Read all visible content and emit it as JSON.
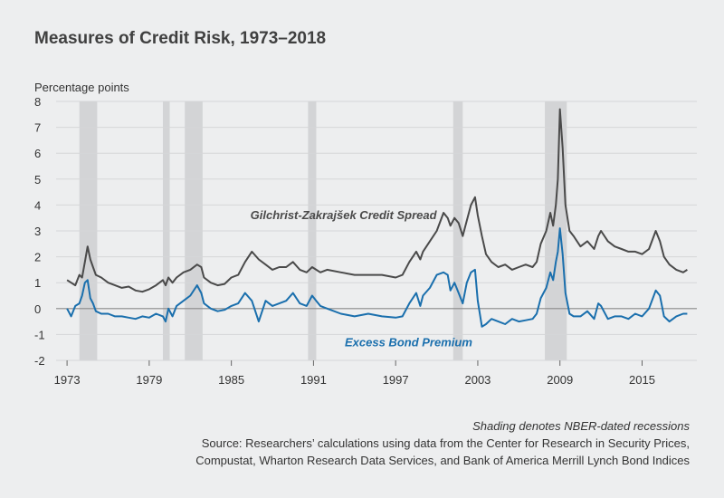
{
  "chart_data": {
    "type": "line",
    "title": "Measures of Credit Risk, 1973–2018",
    "ylabel": "Percentage points",
    "xlabel": "",
    "ylim": [
      -2,
      8
    ],
    "xlim": [
      1972.2,
      2019
    ],
    "yticks": [
      "8",
      "7",
      "6",
      "5",
      "4",
      "3",
      "2",
      "1",
      "0",
      "-1",
      "-2"
    ],
    "yticks_values": [
      8,
      7,
      6,
      5,
      4,
      3,
      2,
      1,
      0,
      -1,
      -2
    ],
    "xticks": [
      "1973",
      "1979",
      "1985",
      "1991",
      "1997",
      "2003",
      "2009",
      "2015"
    ],
    "xticks_values": [
      1973,
      1979,
      1985,
      1991,
      1997,
      2003,
      2009,
      2015
    ],
    "grid": "horizontal",
    "recessions": [
      [
        1973.9,
        1975.2
      ],
      [
        1980.0,
        1980.5
      ],
      [
        1981.6,
        1982.9
      ],
      [
        1990.6,
        1991.2
      ],
      [
        2001.2,
        2001.9
      ],
      [
        2007.9,
        2009.5
      ]
    ],
    "series": [
      {
        "name": "Gilchrist-Zakrajšek Credit Spread",
        "color": "#4a4a4a",
        "x": [
          1973.0,
          1973.3,
          1973.6,
          1973.9,
          1974.1,
          1974.3,
          1974.5,
          1974.7,
          1974.9,
          1975.1,
          1975.5,
          1976.0,
          1976.5,
          1977.0,
          1977.5,
          1978.0,
          1978.5,
          1979.0,
          1979.5,
          1980.0,
          1980.2,
          1980.4,
          1980.7,
          1981.0,
          1981.5,
          1982.0,
          1982.5,
          1982.8,
          1983.0,
          1983.5,
          1984.0,
          1984.5,
          1985.0,
          1985.5,
          1986.0,
          1986.5,
          1987.0,
          1987.5,
          1988.0,
          1988.5,
          1989.0,
          1989.5,
          1990.0,
          1990.5,
          1990.9,
          1991.2,
          1991.5,
          1992.0,
          1993.0,
          1994.0,
          1995.0,
          1996.0,
          1997.0,
          1997.5,
          1998.0,
          1998.5,
          1998.8,
          1999.0,
          1999.5,
          2000.0,
          2000.5,
          2000.8,
          2001.0,
          2001.3,
          2001.6,
          2001.9,
          2002.2,
          2002.5,
          2002.8,
          2003.0,
          2003.3,
          2003.6,
          2004.0,
          2004.5,
          2005.0,
          2005.5,
          2006.0,
          2006.5,
          2007.0,
          2007.3,
          2007.6,
          2008.0,
          2008.3,
          2008.5,
          2008.7,
          2008.85,
          2009.0,
          2009.2,
          2009.4,
          2009.7,
          2010.0,
          2010.5,
          2011.0,
          2011.5,
          2011.8,
          2012.0,
          2012.5,
          2013.0,
          2013.5,
          2014.0,
          2014.5,
          2015.0,
          2015.5,
          2016.0,
          2016.3,
          2016.6,
          2017.0,
          2017.5,
          2018.0,
          2018.3
        ],
        "values": [
          1.1,
          1.0,
          0.9,
          1.3,
          1.2,
          1.8,
          2.4,
          1.9,
          1.6,
          1.3,
          1.2,
          1.0,
          0.9,
          0.8,
          0.85,
          0.7,
          0.65,
          0.75,
          0.9,
          1.1,
          0.9,
          1.2,
          1.0,
          1.2,
          1.4,
          1.5,
          1.7,
          1.6,
          1.2,
          1.0,
          0.9,
          0.95,
          1.2,
          1.3,
          1.8,
          2.2,
          1.9,
          1.7,
          1.5,
          1.6,
          1.6,
          1.8,
          1.5,
          1.4,
          1.6,
          1.5,
          1.4,
          1.5,
          1.4,
          1.3,
          1.3,
          1.3,
          1.2,
          1.3,
          1.8,
          2.2,
          1.9,
          2.2,
          2.6,
          3.0,
          3.7,
          3.5,
          3.2,
          3.5,
          3.3,
          2.8,
          3.4,
          4.0,
          4.3,
          3.6,
          2.8,
          2.1,
          1.8,
          1.6,
          1.7,
          1.5,
          1.6,
          1.7,
          1.6,
          1.8,
          2.5,
          3.0,
          3.7,
          3.2,
          4.0,
          5.0,
          7.7,
          6.2,
          4.0,
          3.0,
          2.8,
          2.4,
          2.6,
          2.3,
          2.8,
          3.0,
          2.6,
          2.4,
          2.3,
          2.2,
          2.2,
          2.1,
          2.3,
          3.0,
          2.6,
          2.0,
          1.7,
          1.5,
          1.4,
          1.5
        ]
      },
      {
        "name": "Excess Bond Premium",
        "color": "#1a6fad",
        "x": [
          1973.0,
          1973.3,
          1973.6,
          1973.9,
          1974.1,
          1974.3,
          1974.5,
          1974.7,
          1974.9,
          1975.1,
          1975.5,
          1976.0,
          1976.5,
          1977.0,
          1977.5,
          1978.0,
          1978.5,
          1979.0,
          1979.5,
          1980.0,
          1980.2,
          1980.4,
          1980.7,
          1981.0,
          1981.5,
          1982.0,
          1982.5,
          1982.8,
          1983.0,
          1983.5,
          1984.0,
          1984.5,
          1985.0,
          1985.5,
          1986.0,
          1986.5,
          1987.0,
          1987.5,
          1988.0,
          1988.5,
          1989.0,
          1989.5,
          1990.0,
          1990.5,
          1990.9,
          1991.2,
          1991.5,
          1992.0,
          1993.0,
          1994.0,
          1995.0,
          1996.0,
          1997.0,
          1997.5,
          1998.0,
          1998.5,
          1998.8,
          1999.0,
          1999.5,
          2000.0,
          2000.5,
          2000.8,
          2001.0,
          2001.3,
          2001.6,
          2001.9,
          2002.2,
          2002.5,
          2002.8,
          2003.0,
          2003.3,
          2003.6,
          2004.0,
          2004.5,
          2005.0,
          2005.5,
          2006.0,
          2006.5,
          2007.0,
          2007.3,
          2007.6,
          2008.0,
          2008.3,
          2008.5,
          2008.7,
          2008.85,
          2009.0,
          2009.2,
          2009.4,
          2009.7,
          2010.0,
          2010.5,
          2011.0,
          2011.5,
          2011.8,
          2012.0,
          2012.5,
          2013.0,
          2013.5,
          2014.0,
          2014.5,
          2015.0,
          2015.5,
          2016.0,
          2016.3,
          2016.6,
          2017.0,
          2017.5,
          2018.0,
          2018.3
        ],
        "values": [
          0.0,
          -0.3,
          0.1,
          0.2,
          0.5,
          1.0,
          1.1,
          0.4,
          0.2,
          -0.1,
          -0.2,
          -0.2,
          -0.3,
          -0.3,
          -0.35,
          -0.4,
          -0.3,
          -0.35,
          -0.2,
          -0.3,
          -0.5,
          0.0,
          -0.3,
          0.1,
          0.3,
          0.5,
          0.9,
          0.6,
          0.2,
          0.0,
          -0.1,
          -0.05,
          0.1,
          0.2,
          0.6,
          0.3,
          -0.5,
          0.3,
          0.1,
          0.2,
          0.3,
          0.6,
          0.2,
          0.1,
          0.5,
          0.3,
          0.1,
          0.0,
          -0.2,
          -0.3,
          -0.2,
          -0.3,
          -0.35,
          -0.3,
          0.2,
          0.6,
          0.1,
          0.5,
          0.8,
          1.3,
          1.4,
          1.3,
          0.7,
          1.0,
          0.6,
          0.2,
          1.0,
          1.4,
          1.5,
          0.3,
          -0.7,
          -0.6,
          -0.4,
          -0.5,
          -0.6,
          -0.4,
          -0.5,
          -0.45,
          -0.4,
          -0.2,
          0.4,
          0.8,
          1.4,
          1.1,
          1.8,
          2.2,
          3.1,
          2.1,
          0.6,
          -0.2,
          -0.3,
          -0.3,
          -0.1,
          -0.4,
          0.2,
          0.1,
          -0.4,
          -0.3,
          -0.3,
          -0.4,
          -0.2,
          -0.3,
          0.0,
          0.7,
          0.5,
          -0.3,
          -0.5,
          -0.3,
          -0.2,
          -0.2
        ]
      }
    ],
    "annotations": [
      {
        "text": "Gilchrist-Zakrajšek Credit Spread",
        "series": 0,
        "at": [
          2000,
          3.45
        ]
      },
      {
        "text": "Excess Bond Premium",
        "series": 1,
        "at": [
          2002.6,
          -1.45
        ]
      }
    ]
  },
  "notes": {
    "shading": "Shading denotes NBER-dated recessions",
    "source_line1": "Source: Researchers’ calculations using data from the Center for Research in Security Prices,",
    "source_line2": "Compustat, Wharton Research Data Services, and Bank of America Merrill Lynch Bond Indices"
  }
}
